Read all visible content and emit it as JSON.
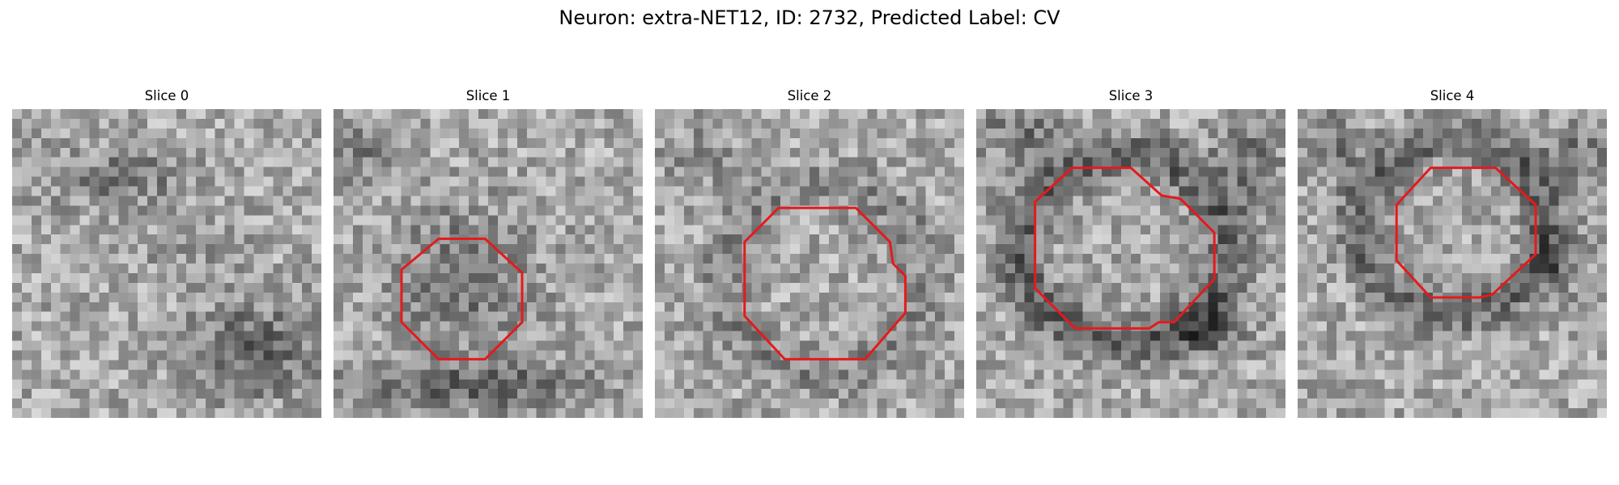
{
  "figure": {
    "title": "Neuron: extra-NET12, ID: 2732, Predicted Label: CV",
    "contour_color": "#e41a1c"
  },
  "panels": [
    {
      "title": "Slice 0",
      "contour": []
    },
    {
      "title": "Slice 1",
      "contour": [
        [
          0.22,
          0.52
        ],
        [
          0.34,
          0.42
        ],
        [
          0.49,
          0.42
        ],
        [
          0.61,
          0.53
        ],
        [
          0.61,
          0.69
        ],
        [
          0.49,
          0.81
        ],
        [
          0.34,
          0.81
        ],
        [
          0.22,
          0.69
        ]
      ]
    },
    {
      "title": "Slice 2",
      "contour": [
        [
          0.29,
          0.43
        ],
        [
          0.4,
          0.32
        ],
        [
          0.65,
          0.32
        ],
        [
          0.76,
          0.43
        ],
        [
          0.77,
          0.5
        ],
        [
          0.81,
          0.54
        ],
        [
          0.81,
          0.66
        ],
        [
          0.74,
          0.74
        ],
        [
          0.68,
          0.81
        ],
        [
          0.42,
          0.81
        ],
        [
          0.29,
          0.67
        ]
      ]
    },
    {
      "title": "Slice 3",
      "contour": [
        [
          0.19,
          0.3
        ],
        [
          0.31,
          0.19
        ],
        [
          0.5,
          0.19
        ],
        [
          0.6,
          0.28
        ],
        [
          0.66,
          0.29
        ],
        [
          0.77,
          0.4
        ],
        [
          0.77,
          0.55
        ],
        [
          0.64,
          0.69
        ],
        [
          0.59,
          0.69
        ],
        [
          0.56,
          0.71
        ],
        [
          0.32,
          0.71
        ],
        [
          0.19,
          0.58
        ]
      ]
    },
    {
      "title": "Slice 4",
      "contour": [
        [
          0.32,
          0.31
        ],
        [
          0.43,
          0.19
        ],
        [
          0.64,
          0.19
        ],
        [
          0.77,
          0.31
        ],
        [
          0.77,
          0.47
        ],
        [
          0.63,
          0.6
        ],
        [
          0.59,
          0.61
        ],
        [
          0.43,
          0.61
        ],
        [
          0.32,
          0.49
        ]
      ]
    }
  ]
}
